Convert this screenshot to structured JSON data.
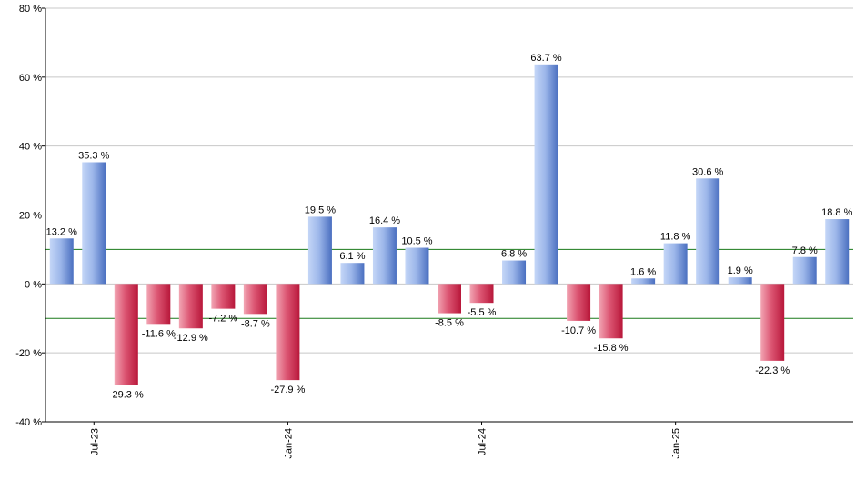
{
  "chart_data": {
    "type": "bar",
    "title": "",
    "xlabel": "",
    "ylabel": "",
    "ylim": [
      -40,
      80
    ],
    "yticks": [
      80,
      60,
      40,
      20,
      0,
      -20,
      -40
    ],
    "ytick_suffix": " %",
    "grid": true,
    "reference_lines": [
      10,
      -10
    ],
    "x_tick_labels": [
      {
        "label": "Jul-23",
        "index": 1
      },
      {
        "label": "Jan-24",
        "index": 7
      },
      {
        "label": "Jul-24",
        "index": 13
      },
      {
        "label": "Jan-25",
        "index": 19
      }
    ],
    "values": [
      13.2,
      35.3,
      -29.3,
      -11.6,
      -12.9,
      -7.2,
      -8.7,
      -27.9,
      19.5,
      6.1,
      16.4,
      10.5,
      -8.5,
      -5.5,
      6.8,
      63.7,
      -10.7,
      -15.8,
      1.6,
      11.8,
      30.6,
      1.9,
      -22.3,
      7.8,
      18.8
    ],
    "labels": [
      "13.2 %",
      "35.3 %",
      "-29.3 %",
      "-11.6 %",
      "-12.9 %",
      "-7.2 %",
      "-8.7 %",
      "-27.9 %",
      "19.5 %",
      "6.1 %",
      "16.4 %",
      "10.5 %",
      "-8.5 %",
      "-5.5 %",
      "6.8 %",
      "63.7 %",
      "-10.7 %",
      "-15.8 %",
      "1.6 %",
      "11.8 %",
      "30.6 %",
      "1.9 %",
      "-22.3 %",
      "7.8 %",
      "18.8 %"
    ],
    "colors": {
      "positive_light": "#c4d6f7",
      "positive_dark": "#4a6fc0",
      "negative_light": "#f2a6b4",
      "negative_dark": "#b8173a",
      "reference_line": "#1a7a1a",
      "grid": "#c8c8c8",
      "axis": "#000000"
    }
  }
}
